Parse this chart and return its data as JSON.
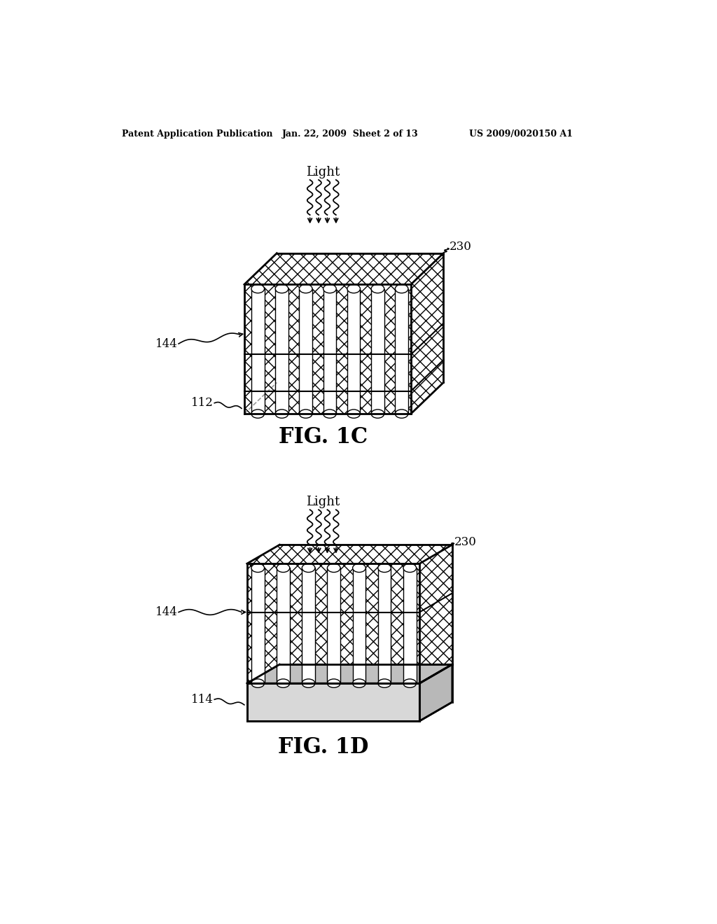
{
  "header_left": "Patent Application Publication",
  "header_center": "Jan. 22, 2009  Sheet 2 of 13",
  "header_right": "US 2009/0020150 A1",
  "fig1c_label": "FIG. 1C",
  "fig1d_label": "FIG. 1D",
  "label_light": "Light",
  "label_230_top": "230",
  "label_144_top": "144",
  "label_112": "112",
  "label_230_bot": "230",
  "label_144_bot": "144",
  "label_114": "114",
  "bg_color": "#ffffff",
  "line_color": "#000000",
  "hatch_color": "#000000",
  "light_gray": "#e8e8e8"
}
